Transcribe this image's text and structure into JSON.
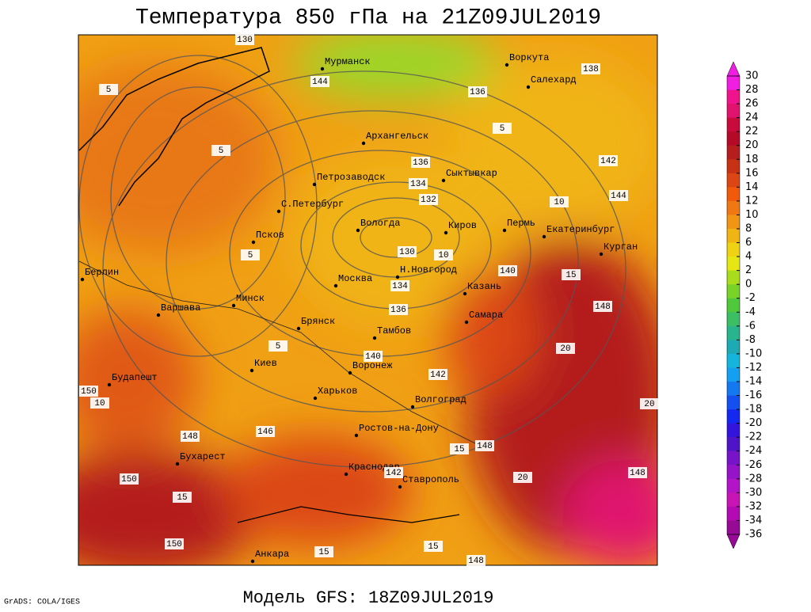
{
  "title": "Температура 850 гПа на 21Z09JUL2019",
  "footer": {
    "credit": "GrADS: COLA/IGES",
    "model": "Модель GFS: 18Z09JUL2019"
  },
  "cities": [
    "Мурманск",
    "Воркута",
    "Салехард",
    "Архангельск",
    "Петрозаводск",
    "Сыктывкар",
    "С.Петербург",
    "Вологда",
    "Киров",
    "Пермь",
    "Екатеринбург",
    "Курган",
    "Псков",
    "Берлин",
    "Н.Новгород",
    "Москва",
    "Казань",
    "Минск",
    "Варшава",
    "Самара",
    "Брянск",
    "Тамбов",
    "Киев",
    "Воронеж",
    "Будапешт",
    "Харьков",
    "Волгоград",
    "Ростов-на-Дону",
    "Бухарест",
    "Краснодар",
    "Ставрополь",
    "Анкара"
  ],
  "contour_labels": [
    130,
    132,
    134,
    134,
    136,
    136,
    138,
    136,
    140,
    140,
    142,
    142,
    144,
    144,
    146,
    148,
    148,
    148,
    148,
    150,
    150,
    150,
    10,
    10,
    10,
    15,
    15,
    15,
    15,
    15,
    20,
    20,
    20,
    5,
    5,
    5,
    5,
    5,
    142,
    148,
    130
  ],
  "colorbar": {
    "ticks": [
      30,
      28,
      26,
      24,
      22,
      20,
      18,
      16,
      14,
      12,
      10,
      8,
      6,
      4,
      2,
      0,
      -2,
      -4,
      -6,
      -8,
      -10,
      -12,
      -14,
      -16,
      -18,
      -20,
      -22,
      -24,
      -26,
      -28,
      -30,
      -32,
      -34,
      -36
    ],
    "colors": [
      "#f01ee0",
      "#f0148c",
      "#e0146e",
      "#c80a3c",
      "#b40a28",
      "#b41e1e",
      "#c83214",
      "#dc4614",
      "#f05a0a",
      "#f07814",
      "#f09614",
      "#f0b414",
      "#f0d214",
      "#e6e614",
      "#aadc1e",
      "#78d228",
      "#50c83c",
      "#3cbe64",
      "#28b48c",
      "#1eaab4",
      "#14b4dc",
      "#14a0f0",
      "#1478f0",
      "#1450f0",
      "#1428f0",
      "#3214dc",
      "#5014c8",
      "#7814c8",
      "#9614c8",
      "#b414c8",
      "#c814b4",
      "#b40ab4",
      "#960a96"
    ]
  }
}
